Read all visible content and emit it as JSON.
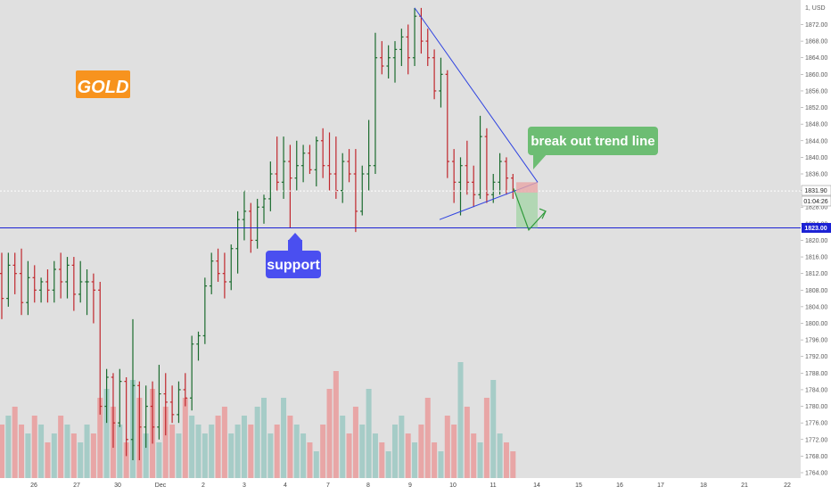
{
  "chart_data": {
    "type": "ohlc",
    "symbol_label": "GOLD",
    "currency_label": "USD",
    "price_axis": {
      "range": [
        1764,
        1880
      ],
      "ticks": [
        "1872.00",
        "1868.00",
        "1864.00",
        "1860.00",
        "1856.00",
        "1852.00",
        "1848.00",
        "1844.00",
        "1840.00",
        "1836.00",
        "1832.00",
        "1828.00",
        "1824.00",
        "1820.00",
        "1816.00",
        "1812.00",
        "1808.00",
        "1804.00",
        "1800.00",
        "1796.00",
        "1792.00",
        "1788.00",
        "1784.00",
        "1780.00",
        "1776.00",
        "1772.00",
        "1768.00",
        "1764.00"
      ],
      "top_label": "1, USD"
    },
    "time_axis": {
      "labels": [
        "26",
        "27",
        "30",
        "Dec",
        "2",
        "3",
        "4",
        "7",
        "8",
        "9",
        "10",
        "11",
        "14",
        "15",
        "16",
        "17",
        "18",
        "21",
        "22"
      ]
    },
    "current_price": {
      "label": "1831.90",
      "value": 1831.9
    },
    "countdown": "01:04:26",
    "support_level": {
      "label": "1823.00",
      "value": 1823.0
    },
    "annotations": {
      "support": "support",
      "breakout": "break out trend line"
    },
    "colors": {
      "bull": "#1b6b2e",
      "bear": "#c0272d",
      "bull_volume": "#a6ccc7",
      "bear_volume": "#e8a6a6",
      "support_line": "#1c22d4",
      "trend_line": "#2f43e0",
      "support_badge": "#4a4ff0",
      "breakout_badge": "#6dbd73",
      "gold_badge": "#f7931e",
      "background": "#e0e0e0"
    },
    "bars": [
      {
        "o": 1812,
        "h": 1817,
        "l": 1801,
        "c": 1806
      },
      {
        "o": 1806,
        "h": 1817,
        "l": 1804,
        "c": 1814
      },
      {
        "o": 1814,
        "h": 1817,
        "l": 1807,
        "c": 1812
      },
      {
        "o": 1812,
        "h": 1818,
        "l": 1802,
        "c": 1805
      },
      {
        "o": 1805,
        "h": 1815,
        "l": 1802,
        "c": 1811
      },
      {
        "o": 1811,
        "h": 1814,
        "l": 1805,
        "c": 1808
      },
      {
        "o": 1808,
        "h": 1811,
        "l": 1805,
        "c": 1810
      },
      {
        "o": 1810,
        "h": 1813,
        "l": 1805,
        "c": 1808
      },
      {
        "o": 1808,
        "h": 1815,
        "l": 1805,
        "c": 1813
      },
      {
        "o": 1813,
        "h": 1817,
        "l": 1806,
        "c": 1810
      },
      {
        "o": 1810,
        "h": 1816,
        "l": 1806,
        "c": 1814
      },
      {
        "o": 1814,
        "h": 1816,
        "l": 1803,
        "c": 1807
      },
      {
        "o": 1807,
        "h": 1815,
        "l": 1805,
        "c": 1810
      },
      {
        "o": 1810,
        "h": 1813,
        "l": 1802,
        "c": 1810
      },
      {
        "o": 1810,
        "h": 1812,
        "l": 1800,
        "c": 1808
      },
      {
        "o": 1808,
        "h": 1810,
        "l": 1778,
        "c": 1780
      },
      {
        "o": 1780,
        "h": 1789,
        "l": 1776,
        "c": 1787
      },
      {
        "o": 1787,
        "h": 1788,
        "l": 1770,
        "c": 1776
      },
      {
        "o": 1776,
        "h": 1789,
        "l": 1775,
        "c": 1786
      },
      {
        "o": 1786,
        "h": 1787,
        "l": 1768,
        "c": 1772
      },
      {
        "o": 1772,
        "h": 1801,
        "l": 1767,
        "c": 1785
      },
      {
        "o": 1785,
        "h": 1786,
        "l": 1767,
        "c": 1775
      },
      {
        "o": 1775,
        "h": 1785,
        "l": 1770,
        "c": 1780
      },
      {
        "o": 1780,
        "h": 1786,
        "l": 1771,
        "c": 1775
      },
      {
        "o": 1775,
        "h": 1790,
        "l": 1772,
        "c": 1783
      },
      {
        "o": 1783,
        "h": 1788,
        "l": 1773,
        "c": 1781
      },
      {
        "o": 1781,
        "h": 1785,
        "l": 1776,
        "c": 1778
      },
      {
        "o": 1778,
        "h": 1786,
        "l": 1776,
        "c": 1784
      },
      {
        "o": 1784,
        "h": 1788,
        "l": 1780,
        "c": 1782
      },
      {
        "o": 1782,
        "h": 1797,
        "l": 1779,
        "c": 1795
      },
      {
        "o": 1795,
        "h": 1798,
        "l": 1791,
        "c": 1797
      },
      {
        "o": 1797,
        "h": 1811,
        "l": 1795,
        "c": 1809
      },
      {
        "o": 1809,
        "h": 1817,
        "l": 1807,
        "c": 1815
      },
      {
        "o": 1815,
        "h": 1818,
        "l": 1810,
        "c": 1812
      },
      {
        "o": 1812,
        "h": 1817,
        "l": 1806,
        "c": 1810
      },
      {
        "o": 1810,
        "h": 1819,
        "l": 1808,
        "c": 1818
      },
      {
        "o": 1818,
        "h": 1827,
        "l": 1812,
        "c": 1825
      },
      {
        "o": 1825,
        "h": 1832,
        "l": 1820,
        "c": 1827
      },
      {
        "o": 1827,
        "h": 1829,
        "l": 1817,
        "c": 1820
      },
      {
        "o": 1820,
        "h": 1830,
        "l": 1818,
        "c": 1828
      },
      {
        "o": 1828,
        "h": 1831,
        "l": 1824,
        "c": 1830
      },
      {
        "o": 1830,
        "h": 1839,
        "l": 1827,
        "c": 1836
      },
      {
        "o": 1836,
        "h": 1845,
        "l": 1832,
        "c": 1834
      },
      {
        "o": 1834,
        "h": 1845,
        "l": 1830,
        "c": 1839
      },
      {
        "o": 1839,
        "h": 1843,
        "l": 1823,
        "c": 1835
      },
      {
        "o": 1835,
        "h": 1844,
        "l": 1832,
        "c": 1838
      },
      {
        "o": 1838,
        "h": 1843,
        "l": 1834,
        "c": 1841
      },
      {
        "o": 1841,
        "h": 1843,
        "l": 1836,
        "c": 1837
      },
      {
        "o": 1837,
        "h": 1845,
        "l": 1833,
        "c": 1844
      },
      {
        "o": 1844,
        "h": 1847,
        "l": 1835,
        "c": 1838
      },
      {
        "o": 1838,
        "h": 1846,
        "l": 1832,
        "c": 1836
      },
      {
        "o": 1836,
        "h": 1845,
        "l": 1830,
        "c": 1832
      },
      {
        "o": 1832,
        "h": 1841,
        "l": 1829,
        "c": 1839
      },
      {
        "o": 1839,
        "h": 1842,
        "l": 1834,
        "c": 1836
      },
      {
        "o": 1836,
        "h": 1842,
        "l": 1822,
        "c": 1827
      },
      {
        "o": 1827,
        "h": 1838,
        "l": 1826,
        "c": 1836
      },
      {
        "o": 1836,
        "h": 1849,
        "l": 1832,
        "c": 1838
      },
      {
        "o": 1838,
        "h": 1870,
        "l": 1836,
        "c": 1864
      },
      {
        "o": 1864,
        "h": 1868,
        "l": 1860,
        "c": 1862
      },
      {
        "o": 1862,
        "h": 1867,
        "l": 1859,
        "c": 1864
      },
      {
        "o": 1864,
        "h": 1868,
        "l": 1858,
        "c": 1866
      },
      {
        "o": 1866,
        "h": 1871,
        "l": 1862,
        "c": 1869
      },
      {
        "o": 1869,
        "h": 1872,
        "l": 1860,
        "c": 1864
      },
      {
        "o": 1864,
        "h": 1876,
        "l": 1862,
        "c": 1874
      },
      {
        "o": 1874,
        "h": 1876,
        "l": 1865,
        "c": 1868
      },
      {
        "o": 1868,
        "h": 1871,
        "l": 1862,
        "c": 1864
      },
      {
        "o": 1864,
        "h": 1866,
        "l": 1854,
        "c": 1856
      },
      {
        "o": 1856,
        "h": 1864,
        "l": 1852,
        "c": 1860
      },
      {
        "o": 1860,
        "h": 1861,
        "l": 1835,
        "c": 1839
      },
      {
        "o": 1839,
        "h": 1842,
        "l": 1829,
        "c": 1834
      },
      {
        "o": 1834,
        "h": 1840,
        "l": 1826,
        "c": 1838
      },
      {
        "o": 1838,
        "h": 1844,
        "l": 1831,
        "c": 1834
      },
      {
        "o": 1834,
        "h": 1838,
        "l": 1828,
        "c": 1831
      },
      {
        "o": 1831,
        "h": 1850,
        "l": 1830,
        "c": 1845
      },
      {
        "o": 1845,
        "h": 1847,
        "l": 1829,
        "c": 1831
      },
      {
        "o": 1831,
        "h": 1836,
        "l": 1829,
        "c": 1834
      },
      {
        "o": 1834,
        "h": 1841,
        "l": 1831,
        "c": 1839
      },
      {
        "o": 1839,
        "h": 1840,
        "l": 1831,
        "c": 1835
      },
      {
        "o": 1835,
        "h": 1836,
        "l": 1830,
        "c": 1832
      }
    ],
    "volume": [
      6,
      7,
      8,
      6,
      5,
      7,
      6,
      4,
      5,
      7,
      6,
      5,
      4,
      6,
      5,
      9,
      10,
      8,
      6,
      4,
      11,
      9,
      5,
      10,
      4,
      8,
      6,
      5,
      9,
      7,
      6,
      5,
      6,
      7,
      8,
      5,
      6,
      7,
      6,
      8,
      9,
      5,
      6,
      9,
      7,
      6,
      5,
      4,
      3,
      6,
      10,
      12,
      7,
      5,
      8,
      6,
      10,
      5,
      4,
      3,
      6,
      7,
      5,
      4,
      6,
      9,
      4,
      3,
      7,
      6,
      13,
      8,
      5,
      4,
      9,
      11,
      5,
      4,
      3
    ]
  }
}
